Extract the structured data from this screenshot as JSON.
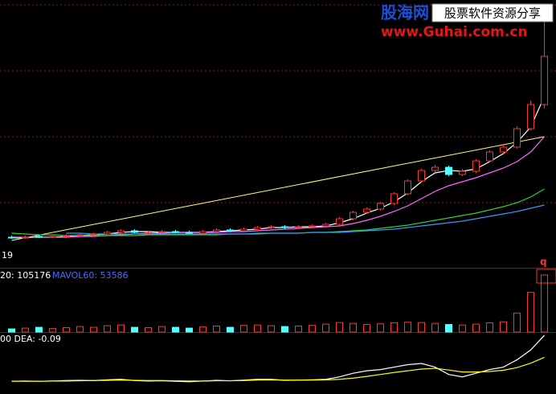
{
  "header": {
    "brand": "股海网",
    "slogan": "股票软件资源分享",
    "url": "www.Guhai.com.cn"
  },
  "chart_data": [
    {
      "type": "candlestick",
      "label": "19",
      "up_color": "#ff3232",
      "down_color": "#54ffff",
      "ylim": [
        0,
        32.5
      ],
      "open": [
        3.0,
        2.9,
        3.1,
        3.0,
        3.1,
        3.2,
        3.3,
        3.4,
        3.6,
        3.8,
        3.5,
        3.6,
        3.7,
        3.6,
        3.5,
        3.7,
        3.9,
        3.8,
        4.0,
        4.2,
        4.3,
        4.2,
        4.3,
        4.4,
        4.6,
        5.3,
        6.1,
        6.5,
        7.2,
        8.4,
        10.0,
        11.3,
        11.7,
        10.8,
        11.2,
        12.5,
        13.6,
        14.2,
        16.5,
        19.5
      ],
      "high": [
        3.2,
        3.2,
        3.3,
        3.3,
        3.4,
        3.5,
        3.6,
        3.8,
        4.0,
        4.0,
        3.8,
        3.9,
        3.9,
        3.8,
        3.9,
        4.1,
        4.1,
        4.2,
        4.4,
        4.5,
        4.5,
        4.5,
        4.6,
        4.8,
        5.5,
        6.3,
        6.7,
        7.4,
        8.6,
        10.2,
        11.5,
        12.0,
        11.9,
        11.5,
        12.7,
        13.8,
        14.5,
        16.8,
        20.0,
        31.5
      ],
      "low": [
        2.8,
        2.8,
        2.9,
        2.9,
        2.9,
        3.0,
        3.1,
        3.2,
        3.4,
        3.5,
        3.4,
        3.4,
        3.5,
        3.4,
        3.3,
        3.5,
        3.6,
        3.6,
        3.8,
        4.0,
        4.0,
        4.0,
        4.1,
        4.2,
        4.4,
        5.1,
        5.9,
        6.3,
        7.0,
        8.2,
        9.8,
        11.1,
        10.6,
        10.6,
        11.0,
        12.3,
        13.4,
        14.0,
        16.3,
        19.0
      ],
      "close": [
        2.9,
        3.0,
        3.0,
        3.1,
        3.2,
        3.3,
        3.4,
        3.6,
        3.8,
        3.6,
        3.6,
        3.7,
        3.6,
        3.5,
        3.7,
        3.9,
        3.8,
        4.0,
        4.2,
        4.3,
        4.2,
        4.3,
        4.4,
        4.6,
        5.3,
        6.1,
        6.5,
        7.2,
        8.4,
        10.0,
        11.3,
        11.7,
        10.8,
        11.2,
        12.5,
        13.6,
        14.2,
        16.5,
        19.5,
        25.5
      ],
      "trend": {
        "color": "#ffff80",
        "from": 2.6,
        "to": 15.5
      },
      "series": [
        {
          "color": "#ffffff",
          "values": [
            2.9,
            2.95,
            3.0,
            3.0,
            3.1,
            3.2,
            3.3,
            3.4,
            3.6,
            3.7,
            3.7,
            3.6,
            3.6,
            3.6,
            3.6,
            3.7,
            3.8,
            3.9,
            4.0,
            4.2,
            4.2,
            4.3,
            4.3,
            4.4,
            4.8,
            5.3,
            6.0,
            6.6,
            7.4,
            8.5,
            9.9,
            11.0,
            11.3,
            11.2,
            11.5,
            12.4,
            13.4,
            14.8,
            16.7,
            20.5
          ]
        },
        {
          "color": "#ff66ff",
          "values": [
            3.0,
            3.0,
            3.0,
            3.0,
            3.0,
            3.1,
            3.1,
            3.2,
            3.3,
            3.4,
            3.5,
            3.5,
            3.6,
            3.6,
            3.6,
            3.6,
            3.7,
            3.7,
            3.8,
            3.9,
            4.0,
            4.1,
            4.2,
            4.3,
            4.4,
            4.7,
            5.1,
            5.6,
            6.2,
            6.9,
            7.8,
            8.7,
            9.4,
            9.9,
            10.4,
            11.0,
            11.6,
            12.4,
            13.6,
            15.5
          ]
        },
        {
          "color": "#33cc33",
          "values": [
            3.5,
            3.4,
            3.3,
            3.3,
            3.2,
            3.2,
            3.2,
            3.2,
            3.2,
            3.2,
            3.3,
            3.3,
            3.3,
            3.3,
            3.3,
            3.3,
            3.4,
            3.4,
            3.4,
            3.5,
            3.5,
            3.5,
            3.6,
            3.6,
            3.7,
            3.8,
            3.9,
            4.1,
            4.3,
            4.5,
            4.8,
            5.1,
            5.4,
            5.7,
            6.0,
            6.4,
            6.8,
            7.3,
            8.0,
            9.0
          ]
        },
        {
          "color": "#3399ff",
          "values": [
            null,
            null,
            null,
            null,
            3.5,
            3.5,
            3.4,
            3.4,
            3.4,
            3.4,
            3.4,
            3.4,
            3.4,
            3.4,
            3.4,
            3.4,
            3.4,
            3.4,
            3.5,
            3.5,
            3.5,
            3.5,
            3.6,
            3.6,
            3.6,
            3.7,
            3.8,
            3.9,
            4.0,
            4.2,
            4.4,
            4.6,
            4.8,
            5.0,
            5.3,
            5.6,
            5.9,
            6.2,
            6.6,
            7.0
          ]
        }
      ]
    },
    {
      "type": "bar",
      "legend": [
        {
          "text": "20: 105176",
          "color": "#ffffff"
        },
        {
          "text": "MAVOL60: 53586",
          "color": "#4d6bff"
        }
      ],
      "marker": "q",
      "ylim": [
        0,
        400000
      ],
      "values": [
        20000,
        25000,
        30000,
        22000,
        28000,
        35000,
        30000,
        40000,
        45000,
        30000,
        28000,
        35000,
        30000,
        25000,
        32000,
        38000,
        30000,
        42000,
        45000,
        40000,
        35000,
        38000,
        42000,
        50000,
        60000,
        55000,
        48000,
        52000,
        58000,
        62000,
        60000,
        55000,
        48000,
        45000,
        50000,
        58000,
        65000,
        120000,
        250000,
        360000
      ]
    },
    {
      "type": "line",
      "label": "00 DEA: -0.09",
      "ylim": [
        -0.5,
        2.0
      ],
      "series": [
        {
          "color": "#ffffff",
          "values": [
            0.02,
            0.03,
            0.02,
            0.03,
            0.05,
            0.06,
            0.05,
            0.08,
            0.1,
            0.05,
            0.03,
            0.04,
            0.02,
            0,
            0.03,
            0.06,
            0.04,
            0.07,
            0.1,
            0.1,
            0.06,
            0.07,
            0.08,
            0.1,
            0.2,
            0.35,
            0.45,
            0.5,
            0.6,
            0.7,
            0.75,
            0.6,
            0.3,
            0.2,
            0.35,
            0.5,
            0.6,
            0.9,
            1.3,
            1.9
          ]
        },
        {
          "color": "#ffff00",
          "values": [
            0.02,
            0.02,
            0.02,
            0.03,
            0.03,
            0.04,
            0.05,
            0.06,
            0.07,
            0.06,
            0.05,
            0.05,
            0.04,
            0.03,
            0.03,
            0.04,
            0.04,
            0.05,
            0.07,
            0.08,
            0.07,
            0.07,
            0.07,
            0.08,
            0.1,
            0.15,
            0.22,
            0.3,
            0.38,
            0.45,
            0.52,
            0.55,
            0.48,
            0.4,
            0.4,
            0.42,
            0.47,
            0.58,
            0.76,
            1.0
          ]
        }
      ]
    }
  ]
}
